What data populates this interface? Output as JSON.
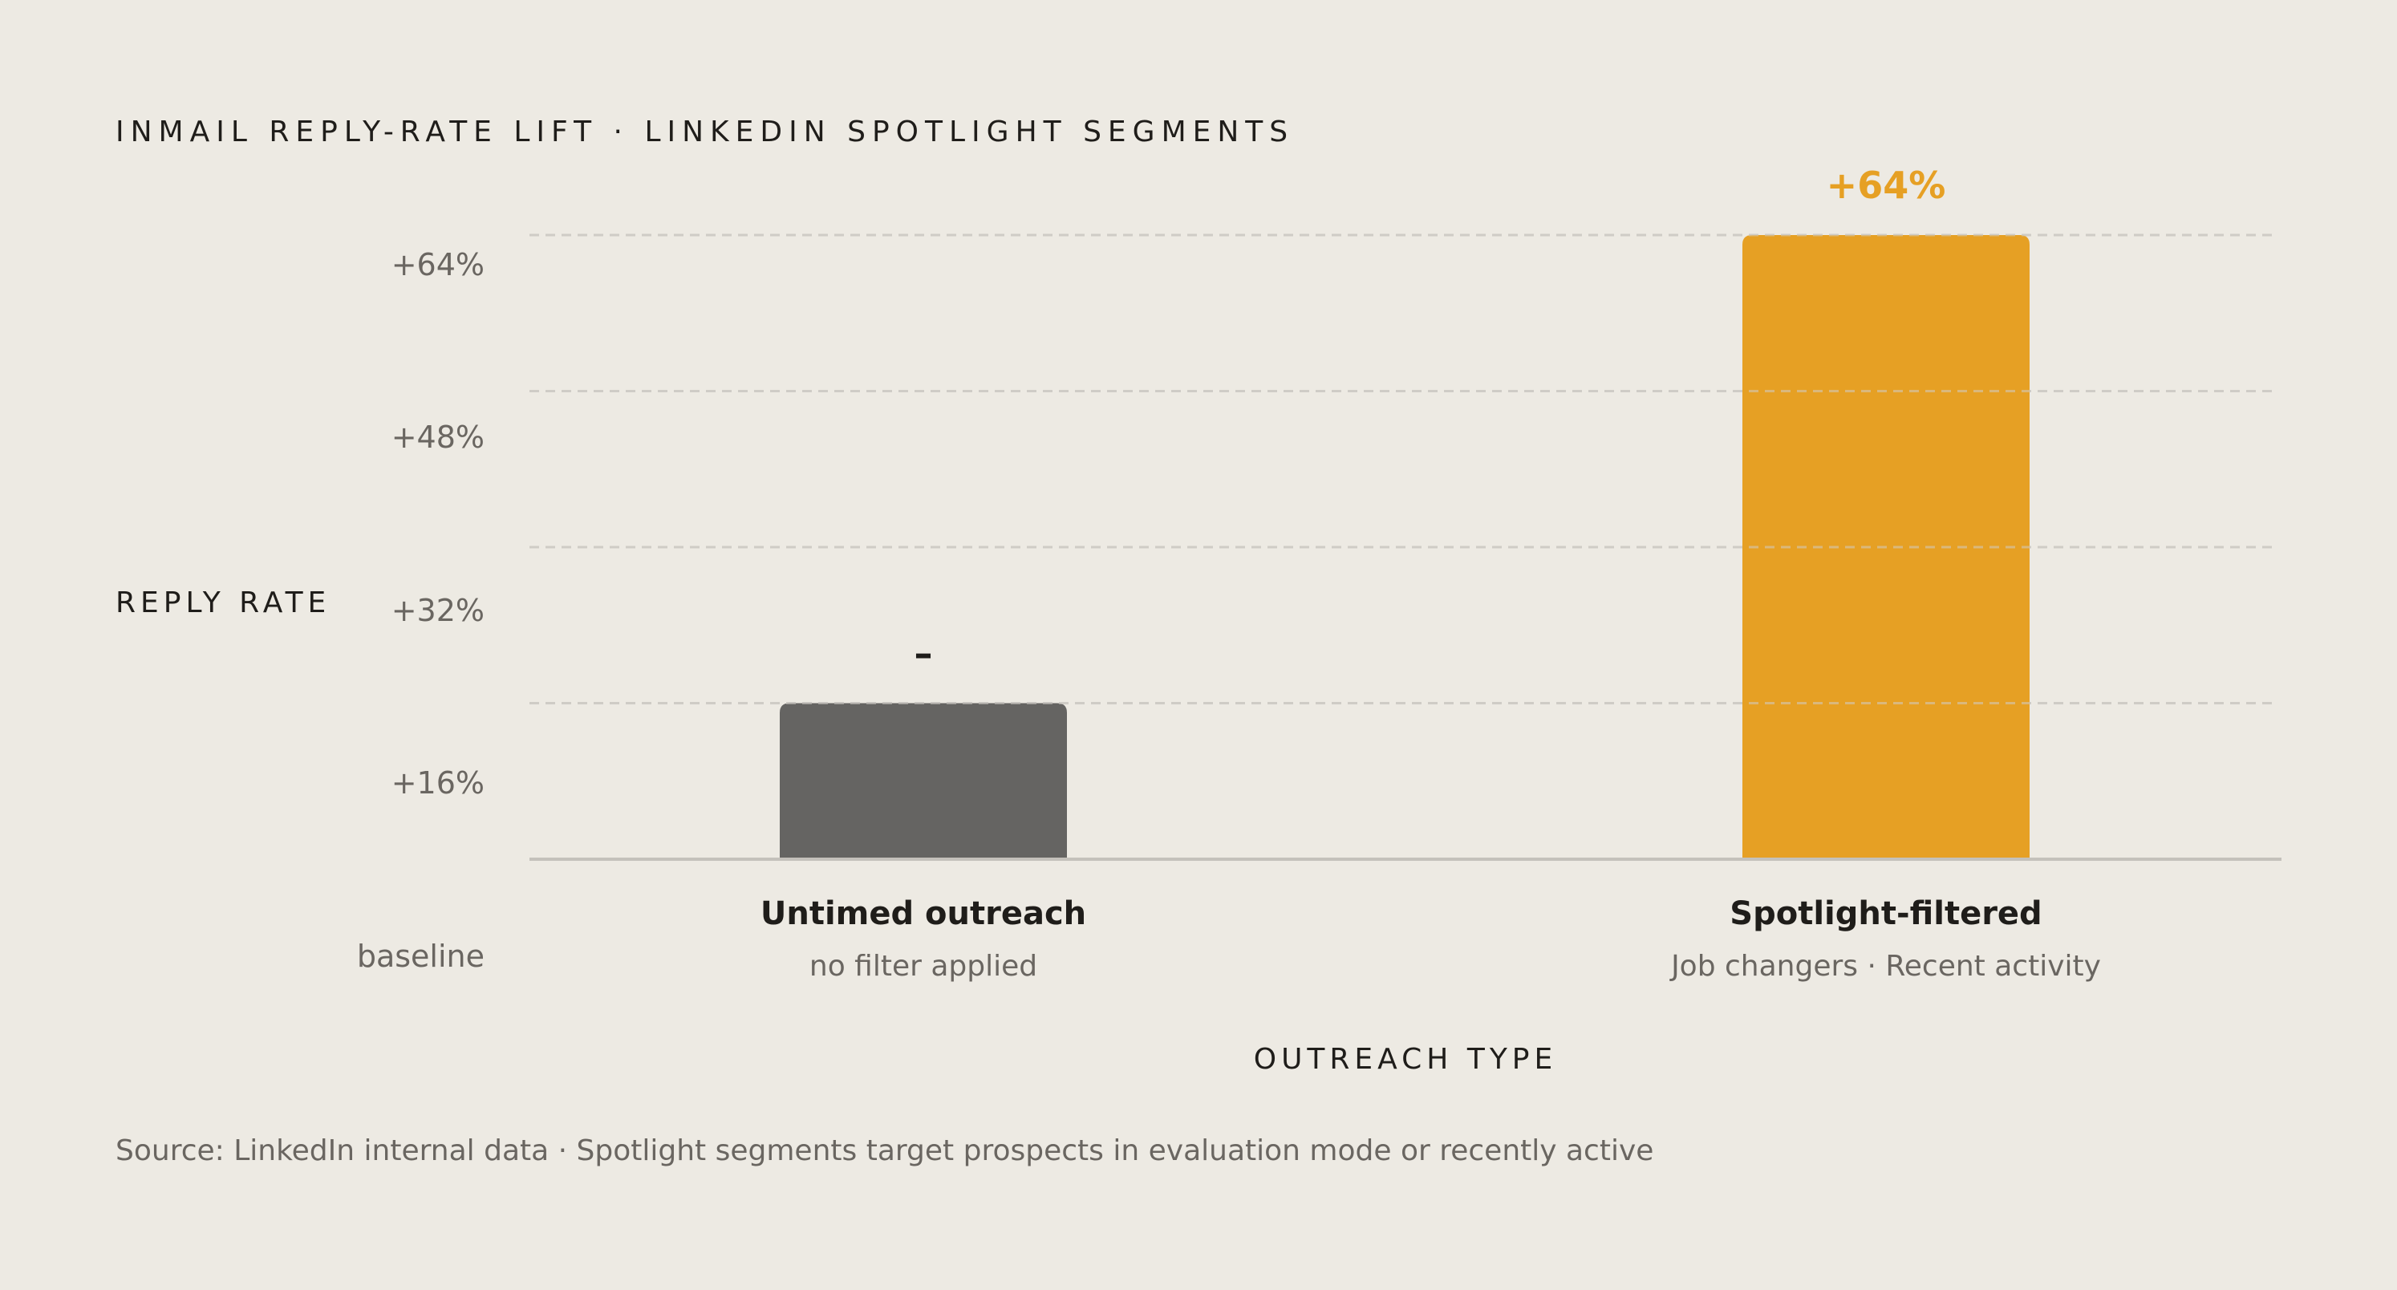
{
  "chart_data": {
    "type": "bar",
    "title": "INMAIL REPLY-RATE LIFT · LINKEDIN SPOTLIGHT SEGMENTS",
    "xlabel": "OUTREACH TYPE",
    "ylabel": "REPLY RATE",
    "ylim": [
      0,
      64
    ],
    "yticks": [
      {
        "value": 0,
        "label": "baseline"
      },
      {
        "value": 16,
        "label": "+16%"
      },
      {
        "value": 32,
        "label": "+32%"
      },
      {
        "value": 48,
        "label": "+48%"
      },
      {
        "value": 64,
        "label": "+64%"
      }
    ],
    "grid": true,
    "categories": [
      "Untimed outreach",
      "Spotlight-filtered"
    ],
    "subtitles": [
      "no filter applied",
      "Job changers · Recent activity"
    ],
    "values": [
      16,
      64
    ],
    "data_labels": [
      "–",
      "+64%"
    ],
    "colors": [
      "#656462",
      "#E6A024"
    ],
    "label_colors": [
      "#1F1D1A",
      "#E6A024"
    ]
  },
  "source": "Source: LinkedIn internal data · Spotlight segments target prospects in evaluation mode or recently active"
}
